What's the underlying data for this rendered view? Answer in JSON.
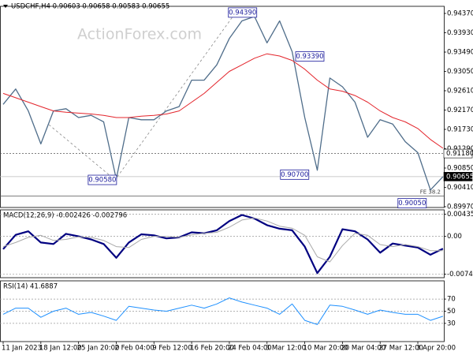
{
  "chart_data": [
    {
      "type": "line",
      "title": "USDCHF,H4 0.90603 0.90658 0.90583 0.90655",
      "watermark": "ActionForex.com",
      "ylim": [
        0.89952,
        0.94532
      ],
      "yticks": [
        {
          "value": 0.9437,
          "label": "0.94370"
        },
        {
          "value": 0.9393,
          "label": "0.93930"
        },
        {
          "value": 0.9349,
          "label": "0.93490"
        },
        {
          "value": 0.9305,
          "label": "0.93050"
        },
        {
          "value": 0.9261,
          "label": "0.92610"
        },
        {
          "value": 0.9217,
          "label": "0.92170"
        },
        {
          "value": 0.9173,
          "label": "0.91730"
        },
        {
          "value": 0.9129,
          "label": "0.91290"
        },
        {
          "value": 0.9085,
          "label": "0.90850"
        },
        {
          "value": 0.9041,
          "label": "0.90410"
        },
        {
          "value": 0.8997,
          "label": "0.89970"
        }
      ],
      "series": [
        {
          "color": "#4f6d8a",
          "values": [
            0.923,
            0.9265,
            0.9215,
            0.914,
            0.9215,
            0.922,
            0.92,
            0.9205,
            0.919,
            0.906,
            0.92,
            0.9195,
            0.9195,
            0.9215,
            0.9225,
            0.9285,
            0.9285,
            0.932,
            0.938,
            0.942,
            0.943,
            0.937,
            0.942,
            0.935,
            0.92,
            0.908,
            0.929,
            0.927,
            0.9235,
            0.9155,
            0.9195,
            0.9185,
            0.9145,
            0.912,
            0.9035,
            0.90655
          ]
        },
        {
          "color": "#e3242b",
          "values": [
            0.9255,
            0.9245,
            0.9235,
            0.9225,
            0.9215,
            0.9212,
            0.921,
            0.9208,
            0.9205,
            0.92,
            0.92,
            0.9203,
            0.9205,
            0.9208,
            0.9215,
            0.9235,
            0.9255,
            0.928,
            0.9305,
            0.932,
            0.9335,
            0.9345,
            0.934,
            0.933,
            0.931,
            0.9285,
            0.9265,
            0.926,
            0.925,
            0.9235,
            0.9215,
            0.92,
            0.919,
            0.9175,
            0.915,
            0.913
          ]
        }
      ],
      "annotations": [
        {
          "x": 18.3,
          "value": 0.9439,
          "label": "0.94390"
        },
        {
          "x": 23.65,
          "value": 0.9339,
          "label": "0.93390"
        },
        {
          "x": 8.9,
          "value": 0.9058,
          "label": "0.90580"
        },
        {
          "x": 24.2,
          "value": 0.907,
          "label": "0.90700"
        },
        {
          "x": 33.55,
          "value": 0.9005,
          "label": "0.90050"
        }
      ],
      "levels": [
        {
          "value": 0.9118,
          "label": "0.91180",
          "style": "dotted"
        },
        {
          "value": 0.90655,
          "label": "0.90655",
          "style": "current"
        },
        {
          "value": 0.90213,
          "label": "FE 38.2",
          "style": "plain"
        }
      ]
    },
    {
      "type": "line",
      "title": "MACD(12,26,9) -0.002426 -0.002796",
      "ylim": [
        -0.0081,
        0.0052
      ],
      "yticks": [
        0.004354,
        {
          "value": 0,
          "label": "0.00"
        },
        -0.007417
      ],
      "series": [
        {
          "color": "#000080",
          "values": [
            -0.0025,
            0.0003,
            0.001,
            -0.0012,
            -0.0015,
            0.0005,
            0.0,
            -0.0006,
            -0.0015,
            -0.0042,
            -0.0012,
            0.0004,
            0.0002,
            -0.0004,
            -0.0002,
            0.0008,
            0.0006,
            0.0012,
            0.003,
            0.0042,
            0.0035,
            0.0022,
            0.0015,
            0.0012,
            -0.002,
            -0.0072,
            -0.004,
            0.0014,
            0.001,
            -0.0006,
            -0.0032,
            -0.0014,
            -0.0018,
            -0.0022,
            -0.0036,
            -0.002426
          ]
        },
        {
          "color": "#a9a9a9",
          "values": [
            -0.002,
            -0.0012,
            -0.0002,
            0.0002,
            -0.0008,
            -0.0006,
            -0.0001,
            -0.0002,
            -0.0008,
            -0.002,
            -0.0022,
            -0.0006,
            0.0,
            0.0,
            -0.0002,
            0.0003,
            0.0006,
            0.0008,
            0.0018,
            0.0032,
            0.0036,
            0.003,
            0.002,
            0.0016,
            0.0002,
            -0.004,
            -0.005,
            -0.0018,
            0.0006,
            0.0002,
            -0.0016,
            -0.002,
            -0.0016,
            -0.002,
            -0.0028,
            -0.002796
          ]
        }
      ]
    },
    {
      "type": "line",
      "title": "RSI(14) 41.6887",
      "ylim": [
        0,
        100
      ],
      "yticks": [
        70,
        50,
        30
      ],
      "series": [
        {
          "color": "#1e90ff",
          "values": [
            45,
            55,
            55,
            40,
            50,
            55,
            45,
            48,
            42,
            35,
            58,
            55,
            52,
            50,
            55,
            60,
            55,
            62,
            72,
            65,
            60,
            55,
            45,
            62,
            35,
            28,
            60,
            58,
            52,
            45,
            52,
            48,
            45,
            45,
            35,
            41.6887
          ]
        }
      ],
      "categories": [
        "11 Jan 2023",
        null,
        null,
        "18 Jan 12:00",
        null,
        null,
        "25 Jan 20:00",
        null,
        null,
        "2 Feb 04:00",
        null,
        null,
        "9 Feb 12:00",
        null,
        null,
        "16 Feb 20:00",
        null,
        null,
        "24 Feb 04:00",
        null,
        null,
        "3 Mar 12:00",
        null,
        null,
        "10 Mar 20:00",
        null,
        null,
        "20 Mar 04:00",
        null,
        null,
        "27 Mar 12:00",
        null,
        null,
        "3 Apr 20:00",
        null,
        null
      ]
    }
  ]
}
